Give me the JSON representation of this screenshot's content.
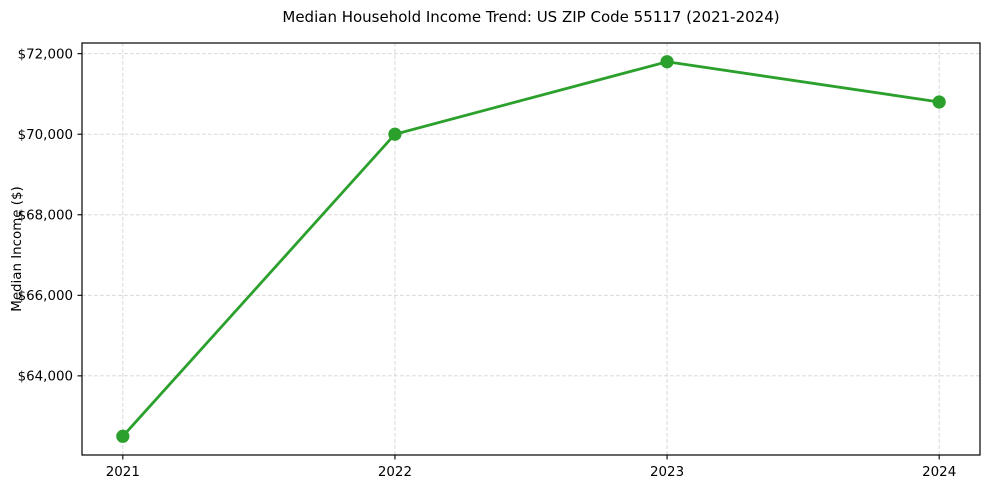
{
  "figure": {
    "title": "Median Household Income Trend: US ZIP Code 55117 (2021-2024)",
    "ylabel": "Median Income ($)"
  },
  "chart_data": {
    "type": "line",
    "title": "Median Household Income Trend: US ZIP Code 55117 (2021-2024)",
    "xlabel": "",
    "ylabel": "Median Income ($)",
    "x": [
      2021,
      2022,
      2023,
      2024
    ],
    "series": [
      {
        "name": "Median Household Income",
        "values": [
          62500,
          70000,
          71800,
          70800
        ],
        "color": "#2ca02c",
        "marker": "circle"
      }
    ],
    "xtick_labels": [
      "2021",
      "2022",
      "2023",
      "2024"
    ],
    "ytick_values": [
      64000,
      66000,
      68000,
      70000,
      72000
    ],
    "ytick_labels": [
      "$64,000",
      "$66,000",
      "$68,000",
      "$70,000",
      "$72,000"
    ],
    "xlim": [
      2020.85,
      2024.15
    ],
    "ylim": [
      62035,
      72265
    ],
    "grid": true,
    "grid_style": "dashed",
    "grid_color": "#d3d3d3",
    "legend": "none",
    "frame": "full-box",
    "background_color": "#ffffff",
    "spine_color": "#000000",
    "line_width": 2.8,
    "marker_radius": 6.6
  }
}
